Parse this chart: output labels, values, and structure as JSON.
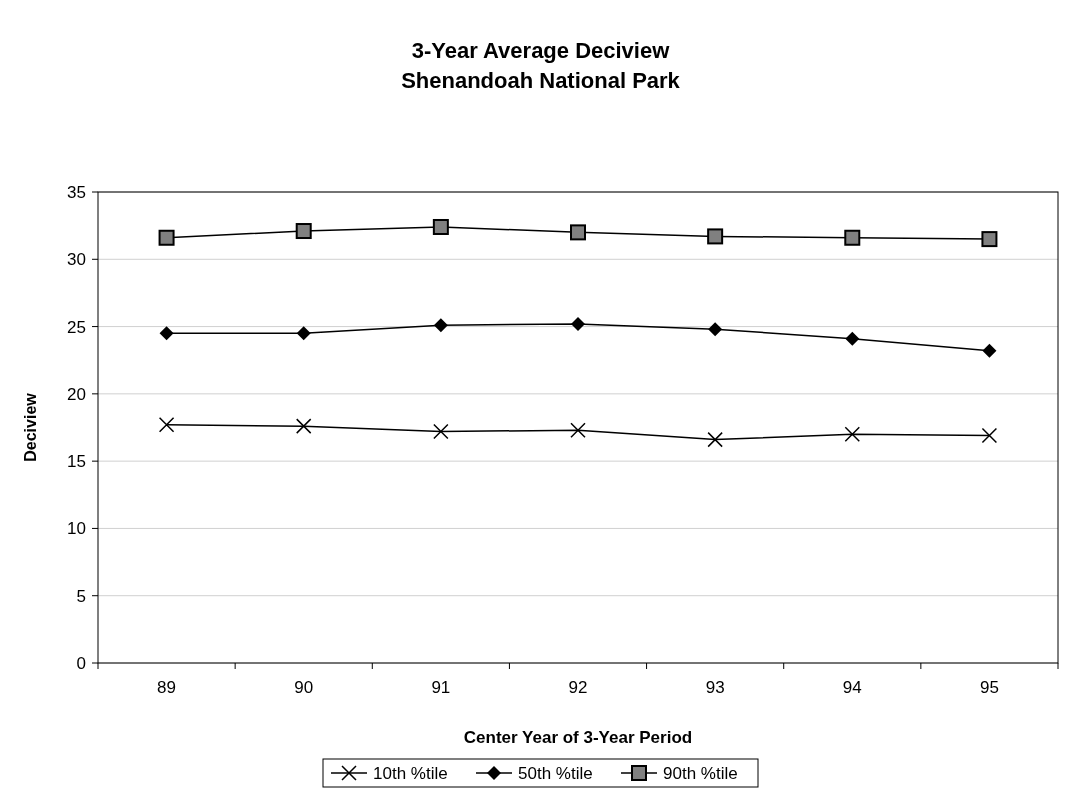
{
  "chart_data": {
    "type": "line",
    "title": "3-Year Average Deciview\nShenandoah National Park",
    "xlabel": "Center Year of 3-Year Period",
    "ylabel": "Deciview",
    "categories": [
      "89",
      "90",
      "91",
      "92",
      "93",
      "94",
      "95"
    ],
    "series": [
      {
        "name": "10th %tile",
        "color": "#000000",
        "marker": "cross",
        "values": [
          17.7,
          17.6,
          17.2,
          17.3,
          16.6,
          17.0,
          16.9
        ]
      },
      {
        "name": "50th %tile",
        "color": "#000000",
        "marker": "diamond",
        "values": [
          24.5,
          24.5,
          25.1,
          25.2,
          24.8,
          24.1,
          23.2
        ]
      },
      {
        "name": "90th %tile",
        "color": "#000000",
        "marker": "square",
        "values": [
          31.6,
          32.1,
          32.4,
          32.0,
          31.7,
          31.6,
          31.5
        ]
      }
    ],
    "ylim": [
      0,
      35
    ],
    "yticks": [
      0,
      5,
      10,
      15,
      20,
      25,
      30,
      35
    ],
    "grid": "y",
    "legend": "bottom",
    "line_style": "solid"
  }
}
